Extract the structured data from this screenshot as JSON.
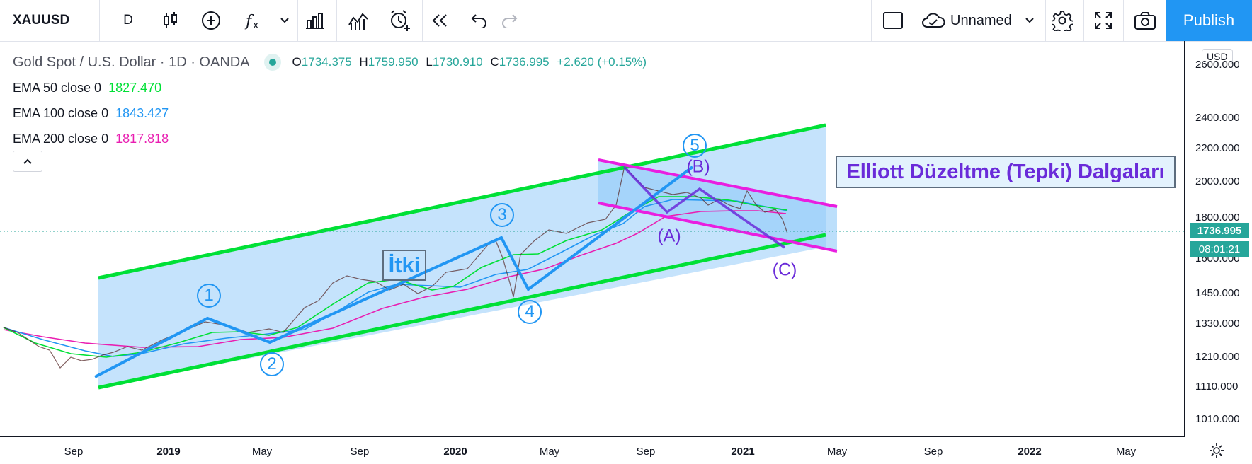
{
  "toolbar": {
    "symbol": "XAUUSD",
    "interval": "D",
    "layout_name": "Unnamed",
    "publish_label": "Publish"
  },
  "legend": {
    "title": "Gold Spot / U.S. Dollar · 1D · OANDA",
    "ohlc": {
      "o_label": "O",
      "o": "1734.375",
      "h_label": "H",
      "h": "1759.950",
      "l_label": "L",
      "l": "1730.910",
      "c_label": "C",
      "c": "1736.995",
      "change": "+2.620 (+0.15%)"
    },
    "indicators": [
      {
        "label": "EMA 50 close 0",
        "value": "1827.470",
        "color": "#00e036"
      },
      {
        "label": "EMA 100 close 0",
        "value": "1843.427",
        "color": "#2196f3"
      },
      {
        "label": "EMA 200 close 0",
        "value": "1817.818",
        "color": "#e91eb1"
      }
    ]
  },
  "price_axis": {
    "currency": "USD",
    "ticks": [
      "2600.000",
      "2400.000",
      "2200.000",
      "2000.000",
      "1800.000",
      "1600.000",
      "1450.000",
      "1330.000",
      "1210.000",
      "1110.000",
      "1010.000"
    ],
    "last_price": "1736.995",
    "countdown": "08:01:21"
  },
  "time_axis": {
    "labels": [
      "Sep",
      "2019",
      "May",
      "Sep",
      "2020",
      "May",
      "Sep",
      "2021",
      "May",
      "Sep",
      "2022",
      "May"
    ]
  },
  "annotations": {
    "elliott_title": "Elliott Düzeltme (Tepki) Dalgaları",
    "impulse_label": "İtki",
    "impulse_waves": [
      "1",
      "2",
      "3",
      "4",
      "5"
    ],
    "corrective_waves": [
      "(A)",
      "(B)",
      "(C)"
    ]
  },
  "colors": {
    "accent": "#2196f3",
    "up": "#26a69a",
    "channel": "#00e036",
    "correction_channel": "#e91ee0",
    "correction": "#6a2bd9"
  },
  "icons": [
    "candles-icon",
    "add-compare-icon",
    "indicators-icon",
    "chevron-down-icon",
    "templates-icon",
    "bars-icon",
    "alert-icon",
    "replay-icon",
    "undo-icon",
    "redo-icon",
    "fullscreen-rect-icon",
    "cloud-icon",
    "gear-icon",
    "expand-icon",
    "camera-icon",
    "chevron-up-icon"
  ]
}
